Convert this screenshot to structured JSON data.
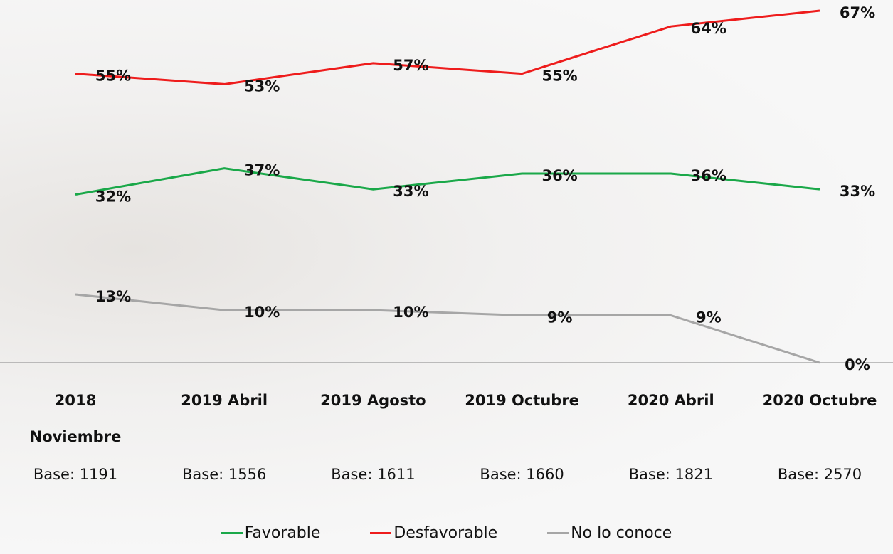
{
  "chart_data": {
    "type": "line",
    "categories": [
      "2018 Noviembre",
      "2019 Abril",
      "2019 Agosto",
      "2019 Octubre",
      "2020 Abril",
      "2020 Octubre"
    ],
    "bases": [
      "Base: 1191",
      "Base: 1556",
      "Base: 1611",
      "Base: 1660",
      "Base: 1821",
      "Base: 2570"
    ],
    "series": [
      {
        "name": "Favorable",
        "color": "#1aa849",
        "values": [
          32,
          37,
          33,
          36,
          36,
          33
        ],
        "value_labels": [
          "32%",
          "37%",
          "33%",
          "36%",
          "36%",
          "33%"
        ]
      },
      {
        "name": "Desfavorable",
        "color": "#ee1c1c",
        "values": [
          55,
          53,
          57,
          55,
          64,
          67
        ],
        "value_labels": [
          "55%",
          "53%",
          "57%",
          "55%",
          "64%",
          "67%"
        ]
      },
      {
        "name": "No lo conoce",
        "color": "#a6a6a6",
        "values": [
          13,
          10,
          10,
          9,
          9,
          0
        ],
        "value_labels": [
          "13%",
          "10%",
          "10%",
          "9%",
          "9%",
          "0%"
        ]
      }
    ]
  }
}
